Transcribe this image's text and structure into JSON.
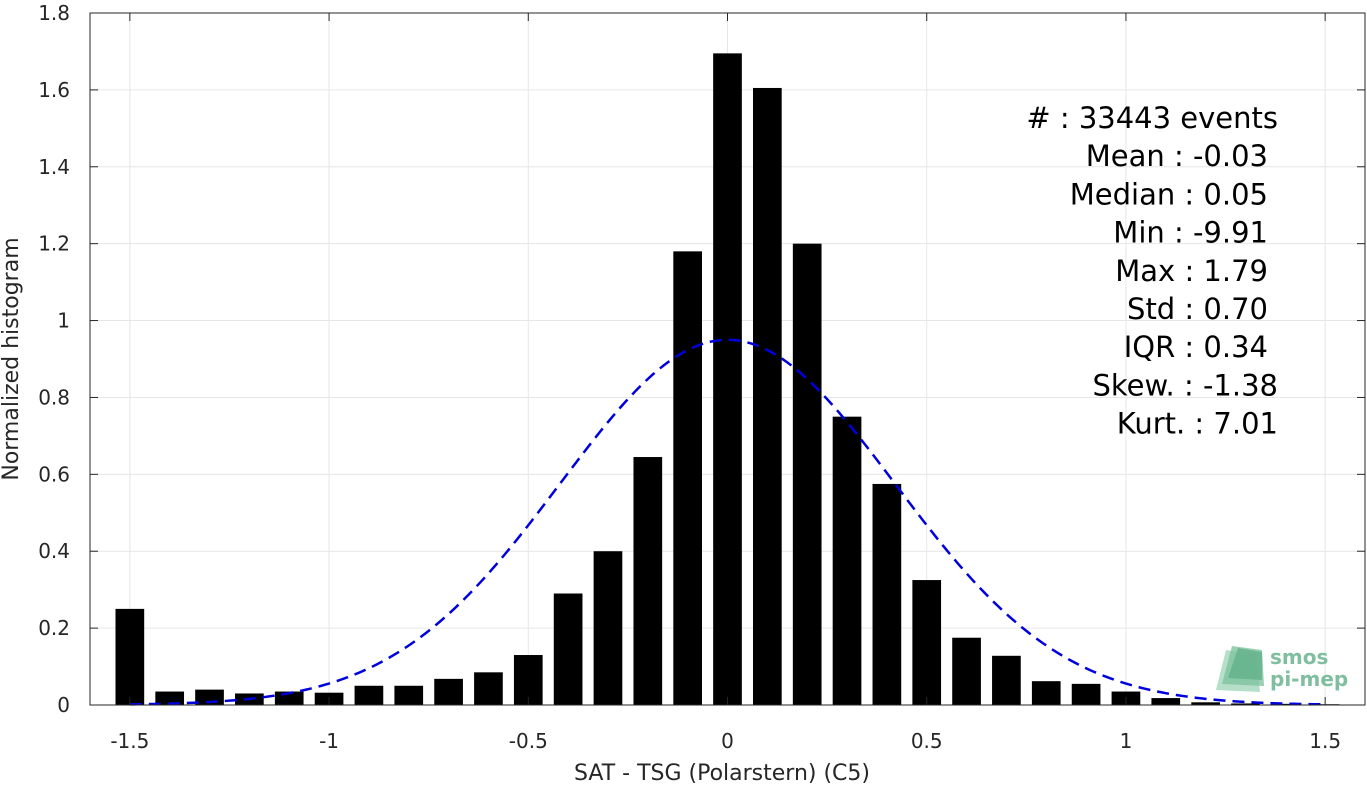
{
  "chart_data": {
    "type": "bar",
    "xlabel": "SAT - TSG (Polarstern) (C5)",
    "ylabel": "Normalized histogram",
    "xlim": [
      -1.6,
      1.6
    ],
    "ylim": [
      0,
      1.8
    ],
    "grid": true,
    "xticks": [
      -1.5,
      -1,
      -0.5,
      0,
      0.5,
      1,
      1.5
    ],
    "xtick_labels": [
      "-1.5",
      "-1",
      "-0.5",
      "0",
      "0.5",
      "1",
      "1.5"
    ],
    "yticks": [
      0,
      0.2,
      0.4,
      0.6,
      0.8,
      1,
      1.2,
      1.4,
      1.6,
      1.8
    ],
    "ytick_labels": [
      "0",
      "0.2",
      "0.4",
      "0.6",
      "0.8",
      "1",
      "1.2",
      "1.4",
      "1.6",
      "1.8"
    ],
    "bar_color": "#000000",
    "bin_width": 0.1,
    "bars": [
      {
        "x": -1.5,
        "y": 0.25
      },
      {
        "x": -1.4,
        "y": 0.035
      },
      {
        "x": -1.3,
        "y": 0.04
      },
      {
        "x": -1.2,
        "y": 0.03
      },
      {
        "x": -1.1,
        "y": 0.035
      },
      {
        "x": -1.0,
        "y": 0.032
      },
      {
        "x": -0.9,
        "y": 0.05
      },
      {
        "x": -0.8,
        "y": 0.05
      },
      {
        "x": -0.7,
        "y": 0.068
      },
      {
        "x": -0.6,
        "y": 0.085
      },
      {
        "x": -0.5,
        "y": 0.13
      },
      {
        "x": -0.4,
        "y": 0.29
      },
      {
        "x": -0.3,
        "y": 0.4
      },
      {
        "x": -0.2,
        "y": 0.645
      },
      {
        "x": -0.1,
        "y": 1.18
      },
      {
        "x": 0.0,
        "y": 1.695
      },
      {
        "x": 0.1,
        "y": 1.605
      },
      {
        "x": 0.2,
        "y": 1.2
      },
      {
        "x": 0.3,
        "y": 0.75
      },
      {
        "x": 0.4,
        "y": 0.575
      },
      {
        "x": 0.5,
        "y": 0.325
      },
      {
        "x": 0.6,
        "y": 0.175
      },
      {
        "x": 0.7,
        "y": 0.128
      },
      {
        "x": 0.8,
        "y": 0.062
      },
      {
        "x": 0.9,
        "y": 0.055
      },
      {
        "x": 1.0,
        "y": 0.035
      },
      {
        "x": 1.1,
        "y": 0.018
      },
      {
        "x": 1.2,
        "y": 0.007
      },
      {
        "x": 1.3,
        "y": 0.004
      },
      {
        "x": 1.4,
        "y": 0.003
      },
      {
        "x": 1.5,
        "y": 0.002
      }
    ],
    "fit_curve": {
      "style": "dashed",
      "color": "#0000dd",
      "mean": 0.0,
      "std": 0.42,
      "x_range": [
        -1.5,
        1.5
      ]
    },
    "stats": [
      {
        "label": "#  : 33443 events"
      },
      {
        "label": "Mean : -0.03"
      },
      {
        "label": "Median : 0.05"
      },
      {
        "label": "Min : -9.91"
      },
      {
        "label": "Max : 1.79"
      },
      {
        "label": "Std : 0.70"
      },
      {
        "label": "IQR : 0.34"
      },
      {
        "label": "Skew. : -1.38"
      },
      {
        "label": "Kurt. : 7.01"
      }
    ]
  },
  "logo": {
    "line1": "smos",
    "line2": "pi-mep"
  }
}
